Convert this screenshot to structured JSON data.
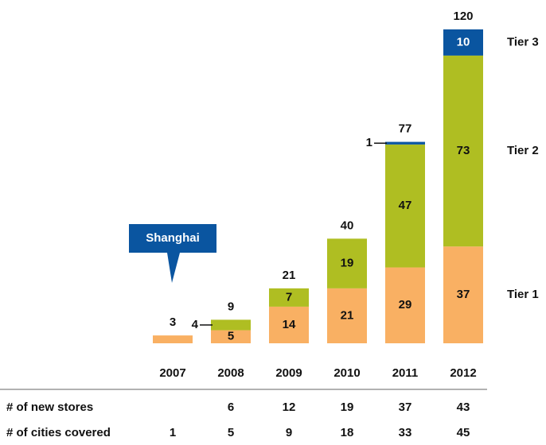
{
  "chart_data": {
    "type": "stacked_bar",
    "categories": [
      "2007",
      "2008",
      "2009",
      "2010",
      "2011",
      "2012"
    ],
    "series": [
      {
        "name": "Tier 1",
        "color": "#f9b063",
        "values": [
          3,
          5,
          14,
          21,
          29,
          37
        ]
      },
      {
        "name": "Tier 2",
        "color": "#afbe22",
        "values": [
          null,
          4,
          7,
          19,
          47,
          73
        ]
      },
      {
        "name": "Tier 3",
        "color": "#0a55a0",
        "values": [
          null,
          null,
          null,
          null,
          1,
          10
        ]
      }
    ],
    "totals": [
      3,
      9,
      21,
      40,
      77,
      120
    ],
    "ylim": [
      0,
      120
    ],
    "annotation": "Shanghai",
    "table": {
      "rows": [
        {
          "label": "# of new stores",
          "values": [
            null,
            6,
            12,
            19,
            37,
            43
          ]
        },
        {
          "label": "# of cities covered",
          "values": [
            1,
            5,
            9,
            18,
            33,
            45
          ]
        }
      ]
    }
  }
}
